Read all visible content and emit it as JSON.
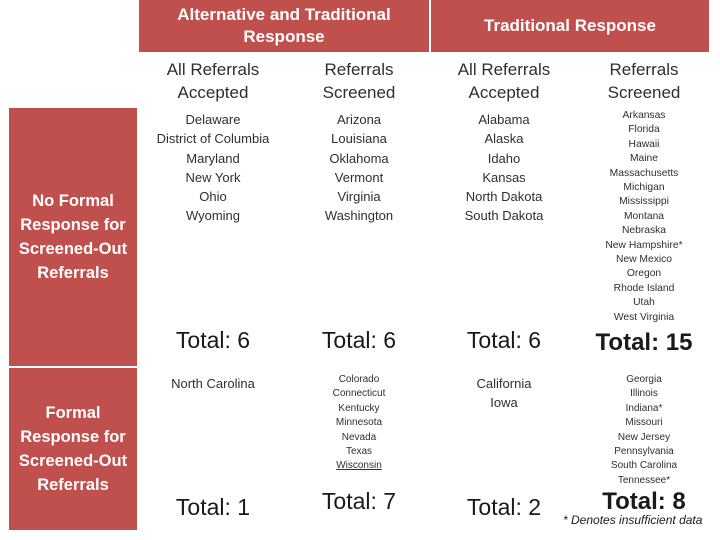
{
  "headers": {
    "alt_trad": "Alternative and Traditional\nResponse",
    "trad": "Traditional Response"
  },
  "subheaders": {
    "alt_accepted": "All Referrals\nAccepted",
    "alt_screened": "Referrals\nScreened",
    "trad_accepted": "All Referrals\nAccepted",
    "trad_screened": "Referrals\nScreened"
  },
  "rows": {
    "no_formal": "No Formal\nResponse for\nScreened-Out\nReferrals",
    "formal": "Formal\nResponse for\nScreened-Out\nReferrals"
  },
  "cells": {
    "r1_alt_accepted": [
      "Delaware",
      "District of Columbia",
      "Maryland",
      "New York",
      "Ohio",
      "Wyoming"
    ],
    "r1_alt_screened": [
      "Arizona",
      "Louisiana",
      "Oklahoma",
      "Vermont",
      "Virginia",
      "Washington"
    ],
    "r1_trad_accepted": [
      "Alabama",
      "Alaska",
      "Idaho",
      "Kansas",
      "North Dakota",
      "South Dakota"
    ],
    "r1_trad_screened": [
      "Arkansas",
      "Florida",
      "Hawaii",
      "Maine",
      "Massachusetts",
      "Michigan",
      "Mississippi",
      "Montana",
      "Nebraska",
      "New Hampshire*",
      "New Mexico",
      "Oregon",
      "Rhode Island",
      "Utah",
      "West Virginia"
    ],
    "r2_alt_accepted": [
      "North Carolina"
    ],
    "r2_alt_screened": [
      "Colorado",
      "Connecticut",
      "Kentucky",
      "Minnesota",
      "Nevada",
      "Texas",
      "Wisconsin"
    ],
    "r2_trad_accepted": [
      "California",
      "Iowa"
    ],
    "r2_trad_screened": [
      "Georgia",
      "Illinois",
      "Indiana*",
      "Missouri",
      "New Jersey",
      "Pennsylvania",
      "South Carolina",
      "Tennessee*"
    ]
  },
  "totals": {
    "r1_alt_accepted": "Total: 6",
    "r1_alt_screened": "Total: 6",
    "r1_trad_accepted": "Total: 6",
    "r1_trad_screened": "Total: 15",
    "r2_alt_accepted": "Total: 1",
    "r2_alt_screened": "Total: 7",
    "r2_trad_accepted": "Total: 2",
    "r2_trad_screened": "Total: 8"
  },
  "footnote": "* Denotes insufficient data"
}
